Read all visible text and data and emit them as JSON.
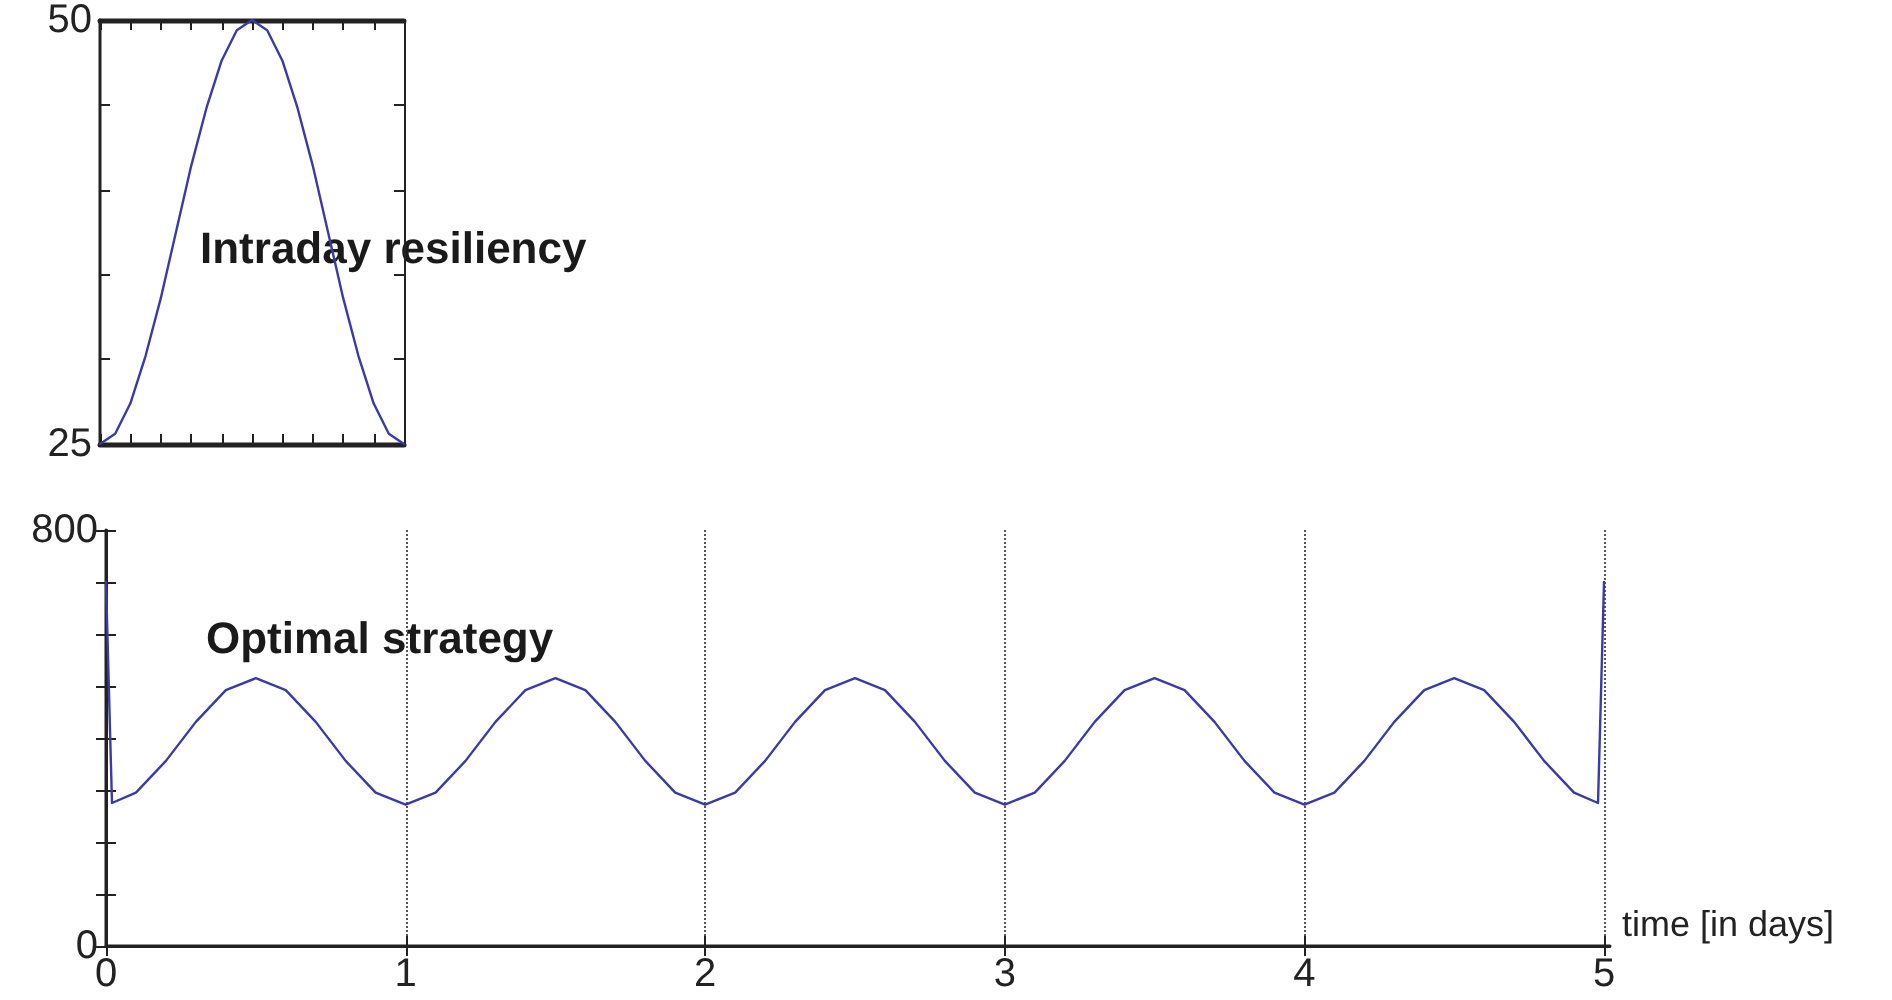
{
  "chart_data": [
    {
      "type": "line",
      "annotations": [
        "Intraday resiliency"
      ],
      "categories": [
        null,
        null,
        null,
        null,
        null,
        null,
        null,
        null,
        null,
        null,
        null,
        null,
        null,
        null,
        null,
        null,
        null,
        null,
        null,
        null,
        null
      ],
      "ylim": [
        25,
        50
      ],
      "yticks": [
        25,
        {
          "value": 30,
          "label": null
        },
        {
          "value": 35,
          "label": null
        },
        {
          "value": 40,
          "label": null
        },
        {
          "value": 45,
          "label": null
        },
        50
      ],
      "tick_labels": "y",
      "grid": false,
      "marker": "none",
      "line_style": "solid",
      "series": [
        {
          "color": "#3a3aa8",
          "values": [
            25,
            25.6,
            27.4,
            30.2,
            33.6,
            37.5,
            41.4,
            44.8,
            47.6,
            49.4,
            50,
            49.4,
            47.6,
            44.8,
            41.4,
            37.5,
            33.6,
            30.2,
            27.4,
            25.6,
            25
          ]
        }
      ]
    },
    {
      "type": "line",
      "annotations": [
        "Optimal strategy"
      ],
      "xlabel": "time [in days]",
      "xlim": [
        0,
        5.02
      ],
      "xticks": [
        0,
        1,
        2,
        3,
        4,
        5
      ],
      "ylim": [
        0,
        800
      ],
      "yticks": [
        0,
        {
          "value": 100,
          "label": null
        },
        {
          "value": 200,
          "label": null
        },
        {
          "value": 300,
          "label": null
        },
        {
          "value": 400,
          "label": null
        },
        {
          "value": 500,
          "label": null
        },
        {
          "value": 600,
          "label": null
        },
        {
          "value": 700,
          "label": null
        },
        800
      ],
      "grid": "x",
      "marker": "none",
      "line_style": "solid",
      "series": [
        {
          "color": "#3a3aa8",
          "x": [
            0,
            0.02,
            0.1,
            0.2,
            0.3,
            0.4,
            0.5,
            0.6,
            0.7,
            0.8,
            0.9,
            1,
            1.1,
            1.2,
            1.3,
            1.4,
            1.5,
            1.6,
            1.7,
            1.8,
            1.9,
            2,
            2.1,
            2.2,
            2.3,
            2.4,
            2.5,
            2.6,
            2.7,
            2.8,
            2.9,
            3,
            3.1,
            3.2,
            3.3,
            3.4,
            3.5,
            3.6,
            3.7,
            3.8,
            3.9,
            4,
            4.1,
            4.2,
            4.3,
            4.4,
            4.5,
            4.6,
            4.7,
            4.8,
            4.9,
            4.98,
            5
          ],
          "values": [
            700,
            275,
            295,
            356,
            431,
            492,
            515,
            492,
            431,
            356,
            295,
            272,
            295,
            356,
            431,
            492,
            515,
            492,
            431,
            356,
            295,
            272,
            295,
            356,
            431,
            492,
            515,
            492,
            431,
            356,
            295,
            272,
            295,
            356,
            431,
            492,
            515,
            492,
            431,
            356,
            295,
            272,
            295,
            356,
            431,
            492,
            515,
            492,
            431,
            356,
            295,
            275,
            700
          ]
        }
      ]
    }
  ]
}
